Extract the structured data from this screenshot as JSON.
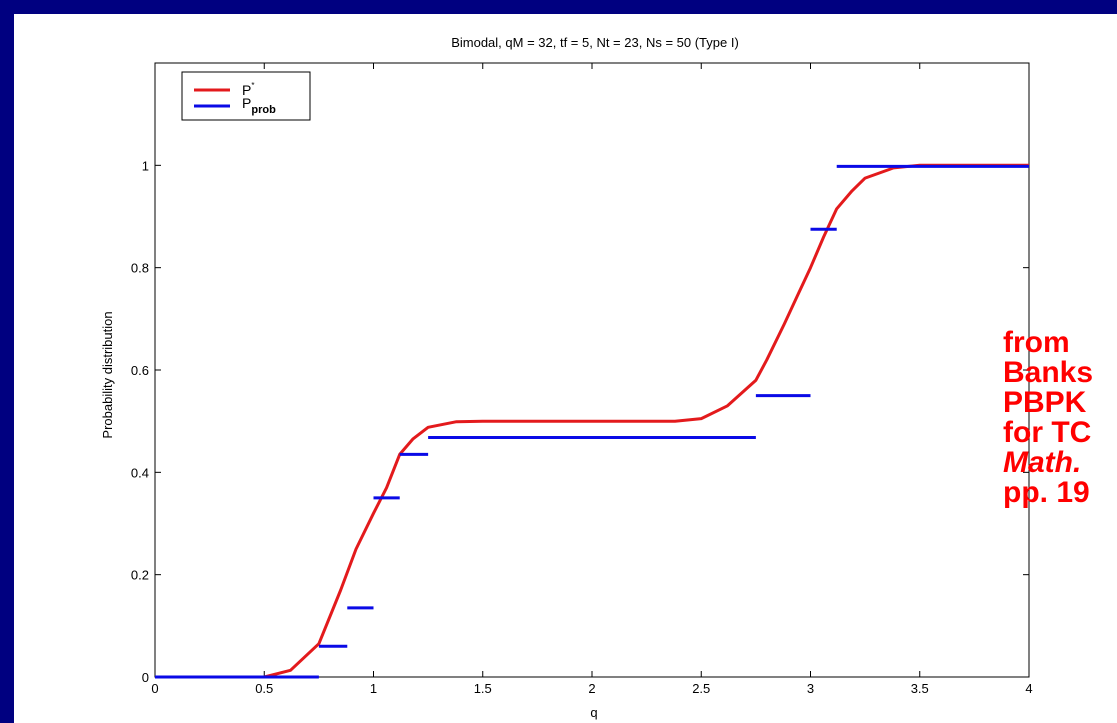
{
  "colors": {
    "background": "#000080",
    "series_p_star": "#e31a1c",
    "series_p_prob": "#0a0ae6",
    "note_text": "#ff0000"
  },
  "note": {
    "lines": [
      "from",
      "Banks",
      "PBPK",
      "for TC",
      "Math.",
      "pp. 19"
    ],
    "italic_line_index": 4
  },
  "chart_data": {
    "type": "line",
    "title": "Bimodal, qM = 32, tf = 5, Nt = 23, Ns = 50 (Type I)",
    "xlabel": "q",
    "ylabel": "Probability distribution",
    "xlim": [
      0,
      4
    ],
    "ylim": [
      0,
      1.2
    ],
    "xticks": [
      "0",
      "0.5",
      "1",
      "1.5",
      "2",
      "2.5",
      "3",
      "3.5",
      "4"
    ],
    "yticks": [
      "0",
      "0.2",
      "0.4",
      "0.6",
      "0.8",
      "1"
    ],
    "grid": false,
    "legend_position": "top-left",
    "legend": [
      {
        "name": "P",
        "superscript": "*"
      },
      {
        "name": "P",
        "subscript": "prob"
      }
    ],
    "series": [
      {
        "name": "P*",
        "kind": "line",
        "x": [
          0,
          0.5,
          0.62,
          0.75,
          0.85,
          0.92,
          1.0,
          1.06,
          1.12,
          1.18,
          1.25,
          1.38,
          1.5,
          1.75,
          2.0,
          2.25,
          2.38,
          2.5,
          2.62,
          2.75,
          2.8,
          2.88,
          2.94,
          3.0,
          3.06,
          3.12,
          3.19,
          3.25,
          3.38,
          3.5,
          4.0
        ],
        "y": [
          0,
          0,
          0.013,
          0.065,
          0.17,
          0.25,
          0.32,
          0.37,
          0.435,
          0.465,
          0.488,
          0.499,
          0.5,
          0.5,
          0.5,
          0.5,
          0.5,
          0.505,
          0.53,
          0.58,
          0.62,
          0.69,
          0.745,
          0.8,
          0.86,
          0.915,
          0.95,
          0.975,
          0.995,
          1.0,
          1.0
        ]
      },
      {
        "name": "Pprob",
        "kind": "step-segments",
        "segments": [
          {
            "x0": 0,
            "x1": 0.75,
            "y": 0
          },
          {
            "x0": 0.75,
            "x1": 0.88,
            "y": 0.06
          },
          {
            "x0": 0.88,
            "x1": 1.0,
            "y": 0.135
          },
          {
            "x0": 1.0,
            "x1": 1.12,
            "y": 0.35
          },
          {
            "x0": 1.12,
            "x1": 1.25,
            "y": 0.435
          },
          {
            "x0": 1.25,
            "x1": 2.75,
            "y": 0.468
          },
          {
            "x0": 2.75,
            "x1": 3.0,
            "y": 0.55
          },
          {
            "x0": 3.0,
            "x1": 3.12,
            "y": 0.875
          },
          {
            "x0": 3.12,
            "x1": 4.0,
            "y": 0.998
          }
        ]
      }
    ]
  }
}
